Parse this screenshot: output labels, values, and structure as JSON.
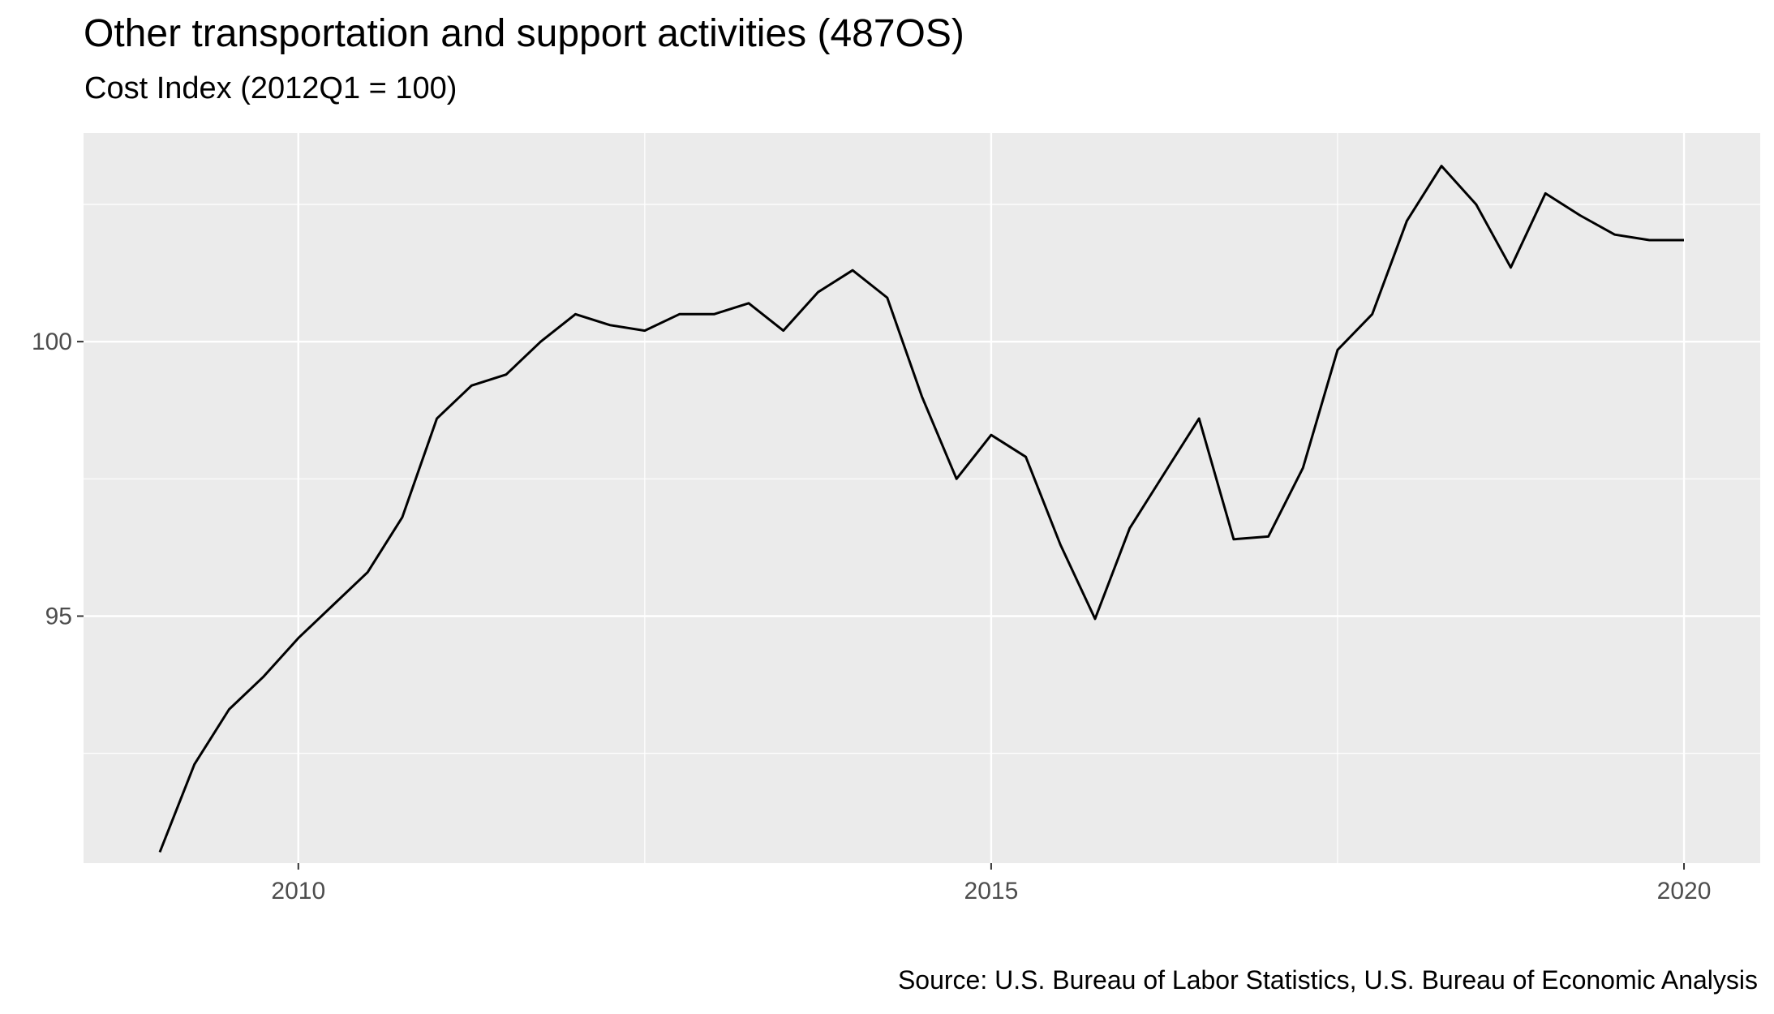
{
  "chart_data": {
    "type": "line",
    "title": "Other transportation and support activities (487OS)",
    "subtitle": "Cost Index (2012Q1 = 100)",
    "caption": "Source: U.S. Bureau of Labor Statistics, U.S. Bureau of Economic Analysis",
    "xlabel": "",
    "ylabel": "",
    "xlim": [
      2008.45,
      2020.55
    ],
    "ylim": [
      90.5,
      103.8
    ],
    "x_ticks": [
      2010,
      2015,
      2020
    ],
    "x_tick_labels": [
      "2010",
      "2015",
      "2020"
    ],
    "y_ticks": [
      95,
      100
    ],
    "y_tick_labels": [
      "95",
      "100"
    ],
    "grid": true,
    "legend": "none",
    "line_color": "#000000",
    "panel_color": "#ebebeb",
    "series": [
      {
        "x": [
          2009.0,
          2009.25,
          2009.5,
          2009.75,
          2010.0,
          2010.25,
          2010.5,
          2010.75,
          2011.0,
          2011.25,
          2011.5,
          2011.75,
          2012.0,
          2012.25,
          2012.5,
          2012.75,
          2013.0,
          2013.25,
          2013.5,
          2013.75,
          2014.0,
          2014.25,
          2014.5,
          2014.75,
          2015.0,
          2015.25,
          2015.5,
          2015.75,
          2016.0,
          2016.25,
          2016.5,
          2016.75,
          2017.0,
          2017.25,
          2017.5,
          2017.75,
          2018.0,
          2018.25,
          2018.5,
          2018.75,
          2019.0,
          2019.25,
          2019.5,
          2019.75,
          2020.0
        ],
        "values": [
          90.7,
          92.3,
          93.3,
          93.9,
          94.6,
          95.2,
          95.8,
          96.8,
          98.6,
          99.2,
          99.4,
          100.0,
          100.5,
          100.3,
          100.2,
          100.5,
          100.5,
          100.7,
          100.2,
          100.9,
          101.3,
          100.8,
          99.0,
          97.5,
          98.3,
          97.9,
          96.3,
          94.95,
          96.6,
          97.6,
          98.6,
          96.4,
          96.45,
          97.7,
          99.85,
          100.5,
          102.2,
          103.2,
          102.5,
          101.35,
          102.7,
          102.3,
          101.95,
          101.85,
          101.85
        ]
      }
    ]
  }
}
